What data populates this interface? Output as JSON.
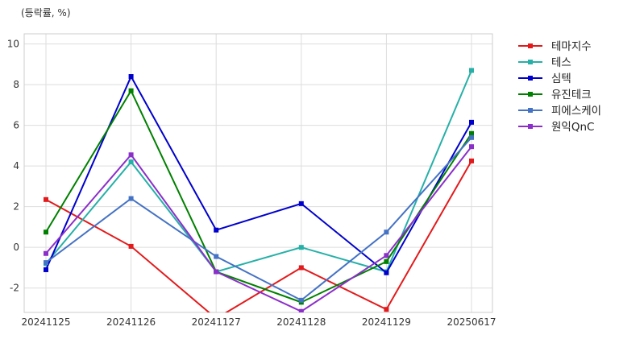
{
  "chart_data": {
    "type": "line",
    "title": "",
    "unit_label": "(등락률, %)",
    "categories": [
      "20241125",
      "20241126",
      "20241127",
      "20241128",
      "20241129",
      "20250617"
    ],
    "ylim": [
      -3.2,
      10.5
    ],
    "yticks": [
      -2,
      0,
      2,
      4,
      6,
      8,
      10
    ],
    "grid": true,
    "legend_position": "right-outside",
    "series": [
      {
        "name": "테마지수",
        "color": "#e31a1c",
        "values": [
          2.35,
          0.05,
          -3.5,
          -1.0,
          -3.05,
          4.25
        ]
      },
      {
        "name": "테스",
        "color": "#26b0a8",
        "values": [
          -0.8,
          4.2,
          -1.2,
          0.0,
          -1.2,
          8.7
        ]
      },
      {
        "name": "심텍",
        "color": "#0000cc",
        "values": [
          -1.1,
          8.4,
          0.85,
          2.15,
          -1.25,
          6.15
        ]
      },
      {
        "name": "유진테크",
        "color": "#008000",
        "values": [
          0.75,
          7.7,
          -1.2,
          -2.7,
          -0.7,
          5.6
        ]
      },
      {
        "name": "피에스케이",
        "color": "#4472c4",
        "values": [
          -0.75,
          2.4,
          -0.45,
          -2.6,
          0.75,
          5.4
        ]
      },
      {
        "name": "원익QnC",
        "color": "#8b2fc9",
        "values": [
          -0.3,
          4.55,
          -1.2,
          -3.15,
          -0.4,
          4.95
        ]
      }
    ]
  }
}
